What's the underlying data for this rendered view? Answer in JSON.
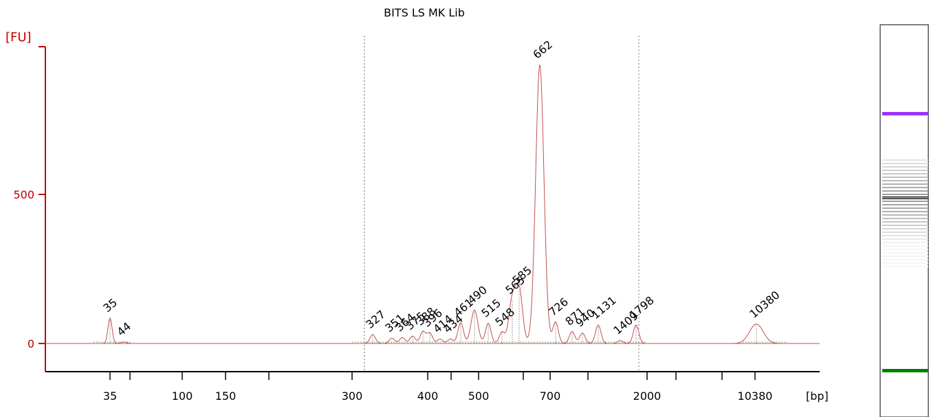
{
  "chart_data": {
    "type": "line",
    "title": "BITS LS MK Lib",
    "ylabel": "[FU]",
    "xlabel": "[bp]",
    "y_ticks": [
      0,
      500
    ],
    "ylim": [
      -95,
      1050
    ],
    "x_tick_labels": [
      "35",
      "100",
      "150",
      "300",
      "400",
      "500",
      "700",
      "2000",
      "10380"
    ],
    "colors": {
      "trace": "#c0504d",
      "axis_y": "#c00000",
      "lower_marker": "#008000",
      "upper_marker": "#9933ff"
    },
    "peaks": [
      {
        "label": "35",
        "time": 0,
        "fu": 85,
        "color": "#008000"
      },
      {
        "label": "44",
        "time": 20,
        "fu": 5
      },
      {
        "label": "327",
        "time": 382,
        "fu": 30
      },
      {
        "label": "351",
        "time": 410,
        "fu": 18
      },
      {
        "label": "364",
        "time": 425,
        "fu": 20
      },
      {
        "label": "375",
        "time": 440,
        "fu": 25
      },
      {
        "label": "388",
        "time": 455,
        "fu": 40
      },
      {
        "label": "396",
        "time": 465,
        "fu": 35
      },
      {
        "label": "414",
        "time": 480,
        "fu": 15
      },
      {
        "label": "434",
        "time": 495,
        "fu": 15
      },
      {
        "label": "461",
        "time": 510,
        "fu": 70
      },
      {
        "label": "490",
        "time": 530,
        "fu": 112
      },
      {
        "label": "515",
        "time": 550,
        "fu": 68
      },
      {
        "label": "548",
        "time": 570,
        "fu": 38
      },
      {
        "label": "565",
        "time": 585,
        "fu": 145
      },
      {
        "label": "585",
        "time": 595,
        "fu": 178
      },
      {
        "label": "662",
        "time": 625,
        "fu": 935
      },
      {
        "label": "726",
        "time": 648,
        "fu": 72
      },
      {
        "label": "871",
        "time": 672,
        "fu": 40
      },
      {
        "label": "940",
        "time": 687,
        "fu": 35
      },
      {
        "label": "1131",
        "time": 710,
        "fu": 62
      },
      {
        "label": "1409",
        "time": 742,
        "fu": 10
      },
      {
        "label": "1798",
        "time": 765,
        "fu": 62
      },
      {
        "label": "10380",
        "time": 940,
        "fu": 65,
        "color": "#9933ff"
      }
    ],
    "lower_marker": "35",
    "upper_marker": "10380"
  }
}
